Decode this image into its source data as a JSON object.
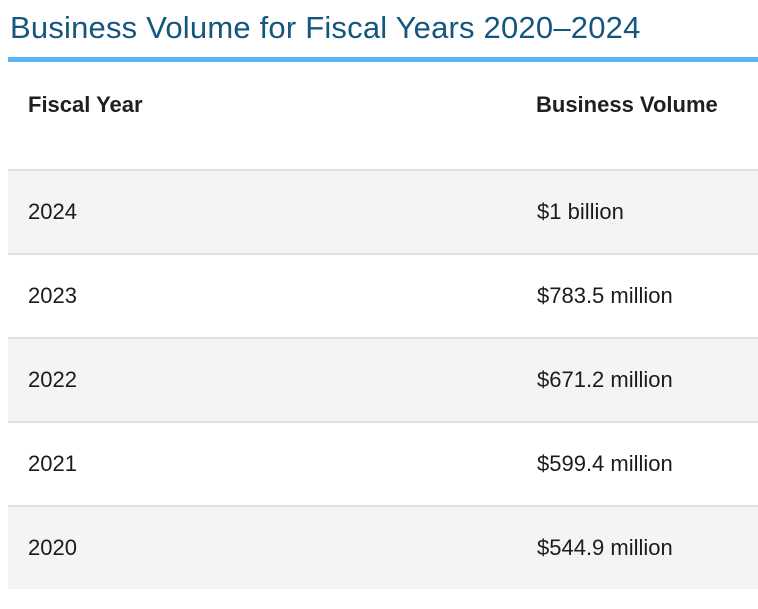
{
  "page": {
    "title": "Business Volume for Fiscal Years 2020–2024"
  },
  "table": {
    "columns": [
      {
        "label": "Fiscal Year"
      },
      {
        "label": "Business Volume"
      }
    ],
    "rows": [
      {
        "fiscal_year": "2024",
        "business_volume": "$1 billion"
      },
      {
        "fiscal_year": "2023",
        "business_volume": "$783.5 million"
      },
      {
        "fiscal_year": "2022",
        "business_volume": "$671.2 million"
      },
      {
        "fiscal_year": "2021",
        "business_volume": "$599.4 million"
      },
      {
        "fiscal_year": "2020",
        "business_volume": "$544.9 million"
      }
    ]
  },
  "chart_data": {
    "type": "table",
    "title": "Business Volume for Fiscal Years 2020–2024",
    "columns": [
      "Fiscal Year",
      "Business Volume"
    ],
    "rows": [
      [
        "2024",
        "$1 billion"
      ],
      [
        "2023",
        "$783.5 million"
      ],
      [
        "2022",
        "$671.2 million"
      ],
      [
        "2021",
        "$599.4 million"
      ],
      [
        "2020",
        "$544.9 million"
      ]
    ],
    "values_usd_millions": {
      "2024": 1000,
      "2023": 783.5,
      "2022": 671.2,
      "2021": 599.4,
      "2020": 544.9
    }
  },
  "colors": {
    "title_text": "#14567F",
    "title_underline": "#57B5F2",
    "row_alt_background": "#F4F4F5",
    "row_border": "#DCDFE4",
    "body_text": "#1B1B1B"
  }
}
